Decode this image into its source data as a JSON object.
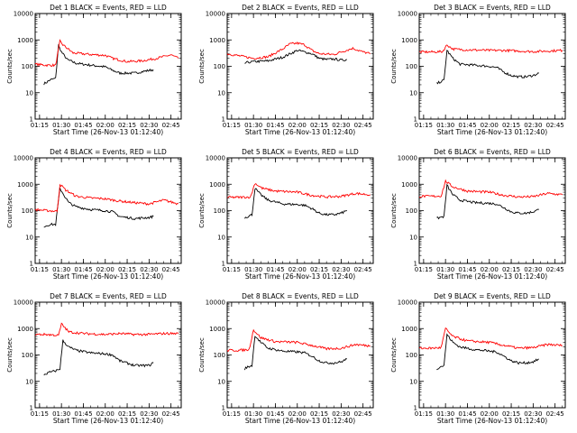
{
  "figure": {
    "xlabel": "Start Time (26-Nov-13 01:12:40)",
    "ylabel": "Counts/sec"
  },
  "chart_data": [
    {
      "type": "line",
      "title": "Det 1 BLACK = Events, RED = LLD",
      "x_ticks": [
        "01:15",
        "01:30",
        "01:45",
        "02:00",
        "02:15",
        "02:30",
        "02:45"
      ],
      "y_ticks": [
        "1",
        "10",
        "100",
        "1000",
        "10000"
      ],
      "y_scale": "log",
      "ylim": [
        1,
        10000
      ],
      "series": [
        {
          "color": "#000000",
          "times": [
            "01:18",
            "01:20",
            "01:22",
            "01:26",
            "01:28",
            "01:30",
            "01:34",
            "01:40",
            "01:50",
            "02:00",
            "02:05",
            "02:10",
            "02:20",
            "02:30",
            "02:33"
          ],
          "values": [
            22,
            25,
            30,
            35,
            600,
            350,
            180,
            130,
            110,
            95,
            70,
            55,
            55,
            70,
            75
          ]
        },
        {
          "color": "#ff0000",
          "times": [
            "01:12",
            "01:20",
            "01:26",
            "01:29",
            "01:31",
            "01:38",
            "01:50",
            "02:00",
            "02:05",
            "02:15",
            "02:25",
            "02:35",
            "02:45",
            "02:50"
          ],
          "values": [
            120,
            110,
            110,
            900,
            650,
            320,
            280,
            260,
            200,
            150,
            160,
            200,
            270,
            200
          ]
        }
      ]
    },
    {
      "type": "line",
      "title": "Det 2 BLACK = Events, RED = LLD",
      "x_ticks": [
        "01:15",
        "01:30",
        "01:45",
        "02:00",
        "02:15",
        "02:30",
        "02:45"
      ],
      "y_ticks": [
        "1",
        "10",
        "100",
        "1000",
        "10000"
      ],
      "y_scale": "log",
      "ylim": [
        1,
        10000
      ],
      "series": [
        {
          "color": "#000000",
          "times": [
            "01:24",
            "01:26",
            "01:30",
            "01:40",
            "01:50",
            "02:00",
            "02:05",
            "02:10",
            "02:15",
            "02:20",
            "02:25",
            "02:30",
            "02:34"
          ],
          "values": [
            130,
            140,
            150,
            160,
            220,
            400,
            350,
            300,
            200,
            180,
            190,
            170,
            180
          ]
        },
        {
          "color": "#ff0000",
          "times": [
            "01:12",
            "01:20",
            "01:30",
            "01:40",
            "01:50",
            "01:55",
            "02:00",
            "02:05",
            "02:10",
            "02:15",
            "02:25",
            "02:30",
            "02:38",
            "02:45",
            "02:50"
          ],
          "values": [
            300,
            250,
            200,
            230,
            450,
            700,
            750,
            650,
            400,
            300,
            280,
            350,
            480,
            350,
            300
          ]
        }
      ]
    },
    {
      "type": "line",
      "title": "Det 3 BLACK = Events, RED = LLD",
      "x_ticks": [
        "01:15",
        "01:30",
        "01:45",
        "02:00",
        "02:15",
        "02:30",
        "02:45"
      ],
      "y_ticks": [
        "1",
        "10",
        "100",
        "1000",
        "10000"
      ],
      "y_scale": "log",
      "ylim": [
        1,
        10000
      ],
      "series": [
        {
          "color": "#000000",
          "times": [
            "01:24",
            "01:26",
            "01:29",
            "01:31",
            "01:35",
            "01:40",
            "01:50",
            "02:00",
            "02:05",
            "02:10",
            "02:15",
            "02:20",
            "02:25",
            "02:30",
            "02:34"
          ],
          "values": [
            22,
            25,
            30,
            400,
            200,
            120,
            110,
            100,
            90,
            60,
            45,
            40,
            40,
            45,
            55
          ]
        },
        {
          "color": "#ff0000",
          "times": [
            "01:12",
            "01:20",
            "01:28",
            "01:31",
            "01:35",
            "01:45",
            "02:00",
            "02:10",
            "02:20",
            "02:30",
            "02:40",
            "02:50"
          ],
          "values": [
            350,
            350,
            360,
            650,
            450,
            420,
            400,
            400,
            380,
            360,
            380,
            400
          ]
        }
      ]
    },
    {
      "type": "line",
      "title": "Det 4 BLACK = Events, RED = LLD",
      "x_ticks": [
        "01:15",
        "01:30",
        "01:45",
        "02:00",
        "02:15",
        "02:30",
        "02:45"
      ],
      "y_ticks": [
        "1",
        "10",
        "100",
        "1000",
        "10000"
      ],
      "y_scale": "log",
      "ylim": [
        1,
        10000
      ],
      "series": [
        {
          "color": "#000000",
          "times": [
            "01:18",
            "01:22",
            "01:26",
            "01:29",
            "01:31",
            "01:35",
            "01:40",
            "01:50",
            "02:00",
            "02:05",
            "02:10",
            "02:20",
            "02:30",
            "02:33"
          ],
          "values": [
            25,
            30,
            30,
            700,
            450,
            200,
            140,
            110,
            100,
            90,
            60,
            50,
            55,
            60
          ]
        },
        {
          "color": "#ff0000",
          "times": [
            "01:12",
            "01:20",
            "01:27",
            "01:29",
            "01:33",
            "01:40",
            "01:50",
            "02:00",
            "02:10",
            "02:20",
            "02:30",
            "02:40",
            "02:50"
          ],
          "values": [
            110,
            100,
            95,
            1000,
            600,
            350,
            300,
            280,
            230,
            200,
            180,
            250,
            180
          ]
        }
      ]
    },
    {
      "type": "line",
      "title": "Det 5 BLACK = Events, RED = LLD",
      "x_ticks": [
        "01:15",
        "01:30",
        "01:45",
        "02:00",
        "02:15",
        "02:30",
        "02:45"
      ],
      "y_ticks": [
        "1",
        "10",
        "100",
        "1000",
        "10000"
      ],
      "y_scale": "log",
      "ylim": [
        1,
        10000
      ],
      "series": [
        {
          "color": "#000000",
          "times": [
            "01:24",
            "01:26",
            "01:29",
            "01:31",
            "01:35",
            "01:40",
            "01:50",
            "02:00",
            "02:05",
            "02:10",
            "02:15",
            "02:20",
            "02:25",
            "02:30",
            "02:34"
          ],
          "values": [
            55,
            60,
            70,
            700,
            400,
            250,
            180,
            170,
            160,
            120,
            80,
            70,
            70,
            80,
            100
          ]
        },
        {
          "color": "#ff0000",
          "times": [
            "01:12",
            "01:20",
            "01:28",
            "01:31",
            "01:36",
            "01:45",
            "02:00",
            "02:10",
            "02:20",
            "02:30",
            "02:40",
            "02:50"
          ],
          "values": [
            320,
            320,
            330,
            1100,
            700,
            550,
            500,
            380,
            330,
            350,
            450,
            400
          ]
        }
      ]
    },
    {
      "type": "line",
      "title": "Det 6 BLACK = Events, RED = LLD",
      "x_ticks": [
        "01:15",
        "01:30",
        "01:45",
        "02:00",
        "02:15",
        "02:30",
        "02:45"
      ],
      "y_ticks": [
        "1",
        "10",
        "100",
        "1000",
        "10000"
      ],
      "y_scale": "log",
      "ylim": [
        1,
        10000
      ],
      "series": [
        {
          "color": "#000000",
          "times": [
            "01:24",
            "01:26",
            "01:29",
            "01:31",
            "01:35",
            "01:40",
            "01:50",
            "02:00",
            "02:05",
            "02:10",
            "02:15",
            "02:20",
            "02:25",
            "02:30",
            "02:34"
          ],
          "values": [
            50,
            55,
            60,
            900,
            400,
            250,
            200,
            190,
            180,
            130,
            90,
            80,
            80,
            90,
            110
          ]
        },
        {
          "color": "#ff0000",
          "times": [
            "01:12",
            "01:20",
            "01:27",
            "01:30",
            "01:35",
            "01:45",
            "02:00",
            "02:10",
            "02:20",
            "02:30",
            "02:40",
            "02:50"
          ],
          "values": [
            350,
            350,
            360,
            1300,
            800,
            550,
            500,
            380,
            330,
            340,
            450,
            400
          ]
        }
      ]
    },
    {
      "type": "line",
      "title": "Det 7 BLACK = Events, RED = LLD",
      "x_ticks": [
        "01:15",
        "01:30",
        "01:45",
        "02:00",
        "02:15",
        "02:30",
        "02:45"
      ],
      "y_ticks": [
        "1",
        "10",
        "100",
        "1000",
        "10000"
      ],
      "y_scale": "log",
      "ylim": [
        1,
        10000
      ],
      "series": [
        {
          "color": "#000000",
          "times": [
            "01:18",
            "01:22",
            "01:26",
            "01:29",
            "01:31",
            "01:35",
            "01:40",
            "01:50",
            "02:00",
            "02:05",
            "02:10",
            "02:20",
            "02:30",
            "02:33"
          ],
          "values": [
            18,
            22,
            25,
            30,
            350,
            200,
            150,
            120,
            110,
            100,
            60,
            40,
            40,
            50
          ]
        },
        {
          "color": "#ff0000",
          "times": [
            "01:12",
            "01:20",
            "01:28",
            "01:30",
            "01:35",
            "01:45",
            "02:00",
            "02:10",
            "02:20",
            "02:30",
            "02:40",
            "02:50"
          ],
          "values": [
            600,
            600,
            550,
            1500,
            750,
            650,
            600,
            650,
            600,
            600,
            650,
            650
          ]
        }
      ]
    },
    {
      "type": "line",
      "title": "Det 8 BLACK = Events, RED = LLD",
      "x_ticks": [
        "01:15",
        "01:30",
        "01:45",
        "02:00",
        "02:15",
        "02:30",
        "02:45"
      ],
      "y_ticks": [
        "1",
        "10",
        "100",
        "1000",
        "10000"
      ],
      "y_scale": "log",
      "ylim": [
        1,
        10000
      ],
      "series": [
        {
          "color": "#000000",
          "times": [
            "01:24",
            "01:26",
            "01:29",
            "01:31",
            "01:35",
            "01:40",
            "01:50",
            "02:00",
            "02:05",
            "02:10",
            "02:15",
            "02:20",
            "02:25",
            "02:30",
            "02:34"
          ],
          "values": [
            30,
            35,
            40,
            550,
            300,
            180,
            140,
            130,
            120,
            90,
            60,
            50,
            50,
            55,
            70
          ]
        },
        {
          "color": "#ff0000",
          "times": [
            "01:12",
            "01:20",
            "01:27",
            "01:30",
            "01:35",
            "01:45",
            "02:00",
            "02:10",
            "02:20",
            "02:30",
            "02:40",
            "02:50"
          ],
          "values": [
            150,
            150,
            160,
            900,
            450,
            320,
            300,
            230,
            170,
            180,
            250,
            220
          ]
        }
      ]
    },
    {
      "type": "line",
      "title": "Det 9 BLACK = Events, RED = LLD",
      "x_ticks": [
        "01:15",
        "01:30",
        "01:45",
        "02:00",
        "02:15",
        "02:30",
        "02:45"
      ],
      "y_ticks": [
        "1",
        "10",
        "100",
        "1000",
        "10000"
      ],
      "y_scale": "log",
      "ylim": [
        1,
        10000
      ],
      "series": [
        {
          "color": "#000000",
          "times": [
            "01:24",
            "01:26",
            "01:29",
            "01:31",
            "01:35",
            "01:40",
            "01:50",
            "02:00",
            "02:05",
            "02:10",
            "02:15",
            "02:20",
            "02:25",
            "02:30",
            "02:34"
          ],
          "values": [
            30,
            35,
            40,
            600,
            300,
            200,
            160,
            140,
            130,
            90,
            60,
            50,
            50,
            55,
            70
          ]
        },
        {
          "color": "#ff0000",
          "times": [
            "01:12",
            "01:20",
            "01:27",
            "01:30",
            "01:35",
            "01:45",
            "02:00",
            "02:10",
            "02:20",
            "02:30",
            "02:40",
            "02:50"
          ],
          "values": [
            180,
            180,
            190,
            1000,
            500,
            340,
            300,
            230,
            180,
            190,
            250,
            230
          ]
        }
      ]
    }
  ]
}
